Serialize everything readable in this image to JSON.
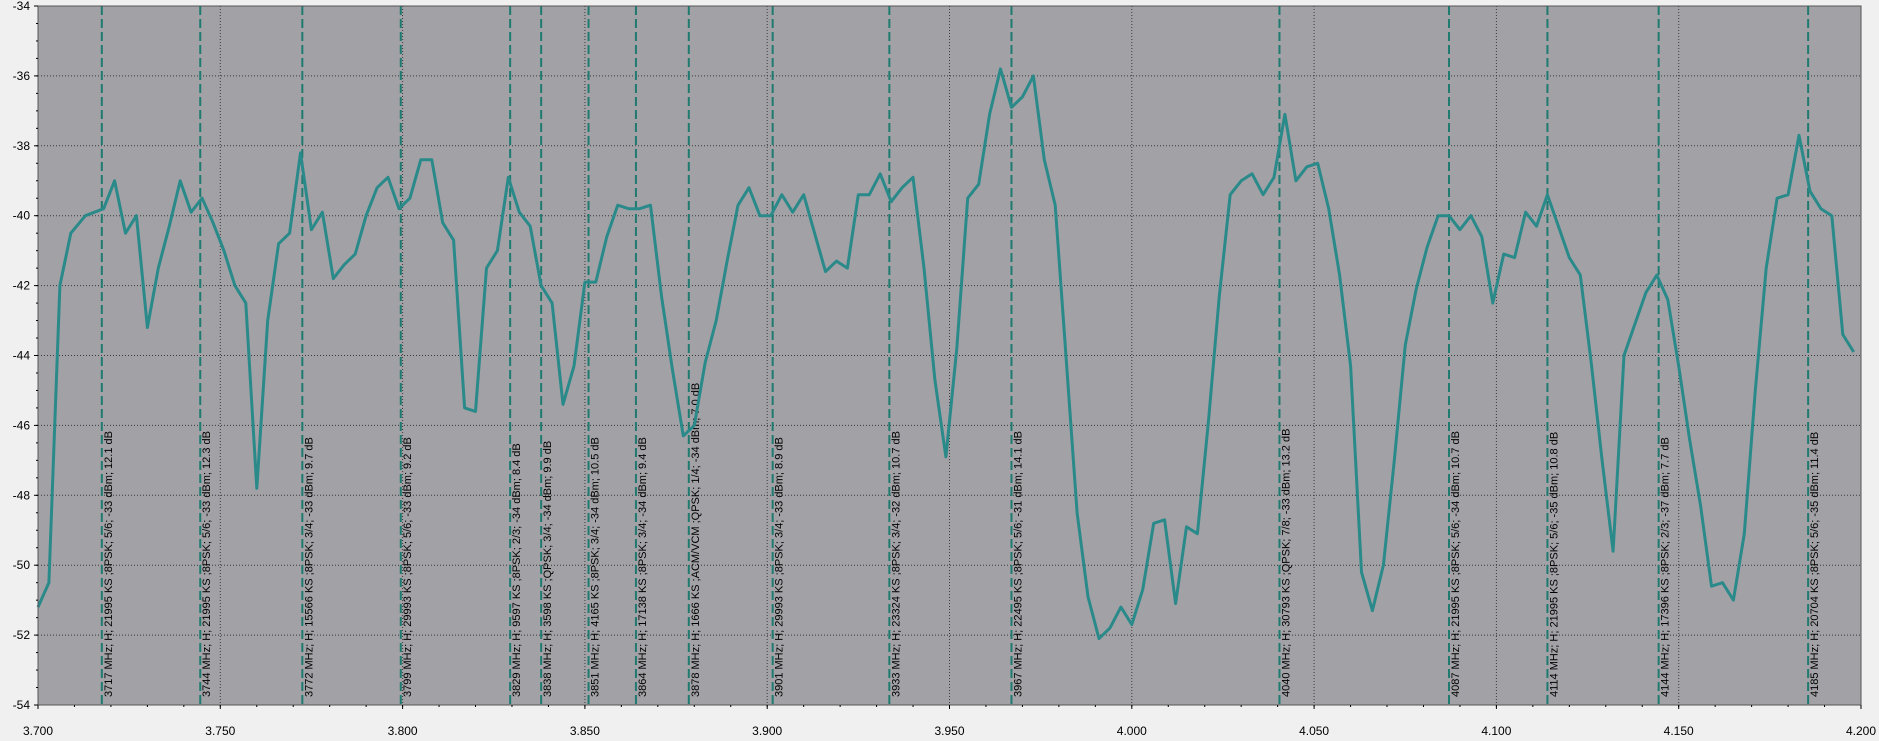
{
  "chart_data": {
    "type": "line",
    "title": "",
    "xlabel": "",
    "ylabel": "",
    "xlim": [
      3.7,
      4.2
    ],
    "ylim": [
      -54,
      -34
    ],
    "grid": true,
    "x_ticks": [
      "3.700",
      "3.750",
      "3.800",
      "3.850",
      "3.900",
      "3.950",
      "4.000",
      "4.050",
      "4.100",
      "4.150",
      "4.200"
    ],
    "y_ticks": [
      "-34",
      "-36",
      "-38",
      "-40",
      "-42",
      "-44",
      "-46",
      "-48",
      "-50",
      "-52",
      "-54"
    ],
    "colors": {
      "line": "#2a8a8a",
      "marker": "#1f7a70",
      "plot_bg": "#a2a1a6",
      "frame_bg": "#f0f0f0"
    },
    "series": [
      {
        "x": [
          3.7,
          3.703,
          3.706,
          3.709,
          3.713,
          3.718,
          3.721,
          3.724,
          3.727,
          3.73,
          3.733,
          3.736,
          3.739,
          3.742,
          3.745,
          3.748,
          3.751,
          3.754,
          3.757,
          3.76,
          3.763,
          3.766,
          3.769,
          3.772,
          3.775,
          3.778,
          3.781,
          3.784,
          3.787,
          3.79,
          3.793,
          3.796,
          3.799,
          3.802,
          3.805,
          3.808,
          3.811,
          3.814,
          3.817,
          3.82,
          3.823,
          3.826,
          3.829,
          3.832,
          3.835,
          3.838,
          3.841,
          3.844,
          3.847,
          3.85,
          3.853,
          3.856,
          3.859,
          3.862,
          3.865,
          3.868,
          3.871,
          3.874,
          3.877,
          3.88,
          3.883,
          3.886,
          3.889,
          3.892,
          3.895,
          3.898,
          3.901,
          3.904,
          3.907,
          3.91,
          3.913,
          3.916,
          3.919,
          3.922,
          3.925,
          3.928,
          3.931,
          3.934,
          3.937,
          3.94,
          3.943,
          3.946,
          3.949,
          3.952,
          3.955,
          3.958,
          3.961,
          3.964,
          3.967,
          3.97,
          3.973,
          3.976,
          3.979,
          3.982,
          3.985,
          3.988,
          3.991,
          3.994,
          3.997,
          4.0,
          4.003,
          4.006,
          4.009,
          4.012,
          4.015,
          4.018,
          4.021,
          4.024,
          4.027,
          4.03,
          4.033,
          4.036,
          4.039,
          4.042,
          4.045,
          4.048,
          4.051,
          4.054,
          4.057,
          4.06,
          4.063,
          4.066,
          4.069,
          4.072,
          4.075,
          4.078,
          4.081,
          4.084,
          4.087,
          4.09,
          4.093,
          4.096,
          4.099,
          4.102,
          4.105,
          4.108,
          4.111,
          4.114,
          4.117,
          4.12,
          4.123,
          4.126,
          4.129,
          4.132,
          4.135,
          4.138,
          4.141,
          4.144,
          4.147,
          4.15,
          4.153,
          4.156,
          4.159,
          4.162,
          4.165,
          4.168,
          4.171,
          4.174,
          4.177,
          4.18,
          4.183,
          4.186,
          4.189,
          4.192,
          4.195,
          4.198
        ],
        "values": [
          -51.2,
          -50.5,
          -42.0,
          -40.5,
          -40.0,
          -39.8,
          -39.0,
          -40.5,
          -40.0,
          -43.2,
          -41.5,
          -40.3,
          -39.0,
          -39.9,
          -39.5,
          -40.2,
          -41.0,
          -42.0,
          -42.5,
          -47.8,
          -43.0,
          -40.8,
          -40.5,
          -38.2,
          -40.4,
          -39.9,
          -41.8,
          -41.4,
          -41.1,
          -40.0,
          -39.2,
          -38.9,
          -39.8,
          -39.5,
          -38.4,
          -38.4,
          -40.2,
          -40.7,
          -45.5,
          -45.6,
          -41.5,
          -41.0,
          -38.9,
          -39.9,
          -40.3,
          -42.0,
          -42.5,
          -45.4,
          -44.3,
          -41.9,
          -41.9,
          -40.6,
          -39.7,
          -39.8,
          -39.8,
          -39.7,
          -42.3,
          -44.4,
          -46.3,
          -46.0,
          -44.2,
          -43.0,
          -41.3,
          -39.7,
          -39.2,
          -40.0,
          -40.0,
          -39.4,
          -39.9,
          -39.4,
          -40.5,
          -41.6,
          -41.3,
          -41.5,
          -39.4,
          -39.4,
          -38.8,
          -39.6,
          -39.2,
          -38.9,
          -41.5,
          -44.7,
          -46.9,
          -43.8,
          -39.5,
          -39.1,
          -37.1,
          -35.8,
          -36.9,
          -36.6,
          -36.0,
          -38.4,
          -39.7,
          -44.1,
          -48.5,
          -50.9,
          -52.1,
          -51.8,
          -51.2,
          -51.7,
          -50.7,
          -48.8,
          -48.7,
          -51.1,
          -48.9,
          -49.1,
          -45.9,
          -42.3,
          -39.4,
          -39.0,
          -38.8,
          -39.4,
          -38.9,
          -37.1,
          -39.0,
          -38.6,
          -38.5,
          -39.8,
          -41.7,
          -44.3,
          -50.2,
          -51.3,
          -50.0,
          -47.0,
          -43.7,
          -42.1,
          -40.9,
          -40.0,
          -40.0,
          -40.4,
          -40.0,
          -40.6,
          -42.5,
          -41.1,
          -41.2,
          -39.9,
          -40.3,
          -39.4,
          -40.3,
          -41.2,
          -41.7,
          -44.2,
          -47.0,
          -49.6,
          -44.0,
          -43.1,
          -42.2,
          -41.7,
          -42.4,
          -44.3,
          -46.4,
          -48.3,
          -50.6,
          -50.5,
          -51.0,
          -49.1,
          -45.0,
          -41.5,
          -39.5,
          -39.4,
          -37.7,
          -39.3,
          -39.8,
          -40.0,
          -43.4,
          -43.9
        ]
      }
    ],
    "markers": [
      {
        "x": 3.7175,
        "label": "3717 MHz; H; 21995 KS ;8PSK; 5/6; -33 dBm; 12.1 dB"
      },
      {
        "x": 3.7445,
        "label": "3744 MHz; H; 21995 KS ;8PSK; 5/6; -33 dBm; 12.3 dB"
      },
      {
        "x": 3.7725,
        "label": "3772 MHz; H; 15566 KS ;8PSK; 3/4; -33 dBm; 9.7 dB"
      },
      {
        "x": 3.7995,
        "label": "3799 MHz; H; 29993 KS ;8PSK; 5/6; -33 dBm; 9.2 dB"
      },
      {
        "x": 3.8295,
        "label": "3829 MHz; H; 9597 KS ;8PSK; 2/3; -34 dBm; 8.4 dB"
      },
      {
        "x": 3.838,
        "label": "3838 MHz; H; 3598 KS ;QPSK; 3/4; -34 dBm; 9.9 dB"
      },
      {
        "x": 3.851,
        "label": "3851 MHz; H; 4165 KS ;8PSK; 3/4; -34 dBm; 10.5 dB"
      },
      {
        "x": 3.864,
        "label": "3864 MHz; H; 17138 KS ;8PSK; 3/4; -34 dBm; 9.4 dB"
      },
      {
        "x": 3.8785,
        "label": "3878 MHz; H; 1666 KS ;ACM/VCM ;QPSK; 1/4; -34 dBm; 7.0 dB"
      },
      {
        "x": 3.9015,
        "label": "3901 MHz; H; 29993 KS ;8PSK; 3/4; -33 dBm; 8.9 dB"
      },
      {
        "x": 3.9335,
        "label": "3933 MHz; H; 23324 KS ;8PSK; 3/4; -32 dBm; 10.7 dB"
      },
      {
        "x": 3.967,
        "label": "3967 MHz; H; 22495 KS ;8PSK; 5/6; -31 dBm; 14.1 dB"
      },
      {
        "x": 4.0405,
        "label": "4040 MHz; H; 30793 KS ;QPSK; 7/8; -33 dBm; 13.2 dB"
      },
      {
        "x": 4.087,
        "label": "4087 MHz; H; 21995 KS ;8PSK; 5/6; -34 dBm; 10.7 dB"
      },
      {
        "x": 4.114,
        "label": "4114 MHz; H; 21995 KS ;8PSK; 5/6; -35 dBm; 10.8 dB"
      },
      {
        "x": 4.1445,
        "label": "4144 MHz; H; 17396 KS ;8PSK; 2/3; -37 dBm; 7.7 dB"
      },
      {
        "x": 4.1855,
        "label": "4185 MHz; H; 20704 KS ;8PSK; 5/6; -35 dBm; 11.4 dB"
      }
    ]
  }
}
